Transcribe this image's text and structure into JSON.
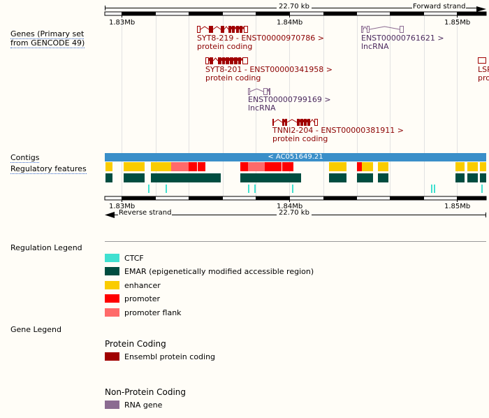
{
  "ruler": {
    "length": "22.70 kb",
    "forward": "Forward strand",
    "reverse": "Reverse strand",
    "ticks": [
      "1.83Mb",
      "1.84Mb",
      "1.85Mb"
    ]
  },
  "tracks": {
    "genes": "Genes (Primary set",
    "genes2": "from GENCODE 49)",
    "contigs": "Contigs",
    "regulatory": "Regulatory features"
  },
  "contig": "< AC051649.21",
  "transcripts": [
    {
      "name": "SYT8-219 - ENST00000970786 >",
      "type": "protein coding"
    },
    {
      "name": "SYT8-201 - ENST00000341958 >",
      "type": "protein coding"
    },
    {
      "name": "ENST00000799169 >",
      "type": "lncRNA"
    },
    {
      "name": "TNNI2-204 - ENST00000381911 >",
      "type": "protein coding"
    },
    {
      "name": "ENST00000761621 >",
      "type": "lncRNA"
    },
    {
      "name": "LSP",
      "type": "pro"
    }
  ],
  "regulation_legend": {
    "title": "Regulation Legend",
    "items": [
      {
        "label": "CTCF",
        "color": "#40e0d0"
      },
      {
        "label": "EMAR (epigenetically modified accessible region)",
        "color": "#004d40"
      },
      {
        "label": "enhancer",
        "color": "#facc00"
      },
      {
        "label": "promoter",
        "color": "#ff0000"
      },
      {
        "label": "promoter flank",
        "color": "#ff6a6a"
      }
    ]
  },
  "gene_legend": {
    "title": "Gene Legend",
    "protein_title": "Protein Coding",
    "protein_item": "Ensembl protein coding",
    "protein_color": "#a00000",
    "nonprotein_title": "Non-Protein Coding",
    "nonprotein_item": "RNA gene",
    "nonprotein_color": "#8b6b91"
  }
}
